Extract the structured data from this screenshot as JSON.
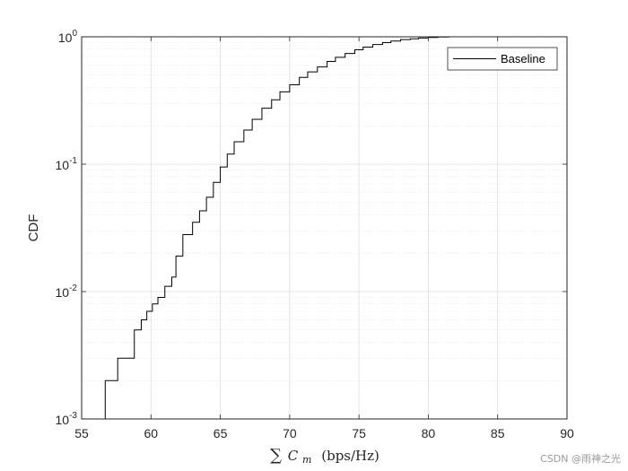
{
  "chart_data": {
    "type": "line",
    "ylabel": "CDF",
    "xlabel": {
      "sum_symbol": "∑",
      "var": "C",
      "subscript": "m",
      "unit": "(bps/Hz)"
    },
    "xlim": [
      55,
      90
    ],
    "ylim": [
      0.001,
      1
    ],
    "yscale": "log",
    "x_ticks": [
      "55",
      "60",
      "65",
      "70",
      "75",
      "80",
      "85",
      "90"
    ],
    "y_ticks": [
      {
        "base": "10",
        "exp": "-3"
      },
      {
        "base": "10",
        "exp": "-2"
      },
      {
        "base": "10",
        "exp": "-1"
      },
      {
        "base": "10",
        "exp": "0"
      }
    ],
    "grid": true,
    "minor_grid": true,
    "legend_position": "top-right",
    "series": [
      {
        "name": "Baseline",
        "color": "#000000",
        "step": true,
        "x": [
          56.7,
          57.6,
          58.8,
          59.3,
          59.7,
          60.1,
          60.5,
          61.0,
          61.5,
          61.8,
          62.3,
          63.0,
          63.5,
          64.0,
          64.5,
          65.0,
          65.5,
          66.0,
          66.7,
          67.3,
          68.0,
          68.7,
          69.3,
          70.0,
          70.7,
          71.3,
          72.0,
          72.7,
          73.3,
          74.0,
          74.7,
          75.3,
          76.0,
          76.7,
          77.3,
          78.0,
          78.7,
          79.3,
          80.0,
          80.7,
          81.5,
          82.0
        ],
        "y": [
          0.002,
          0.003,
          0.005,
          0.006,
          0.007,
          0.008,
          0.009,
          0.011,
          0.013,
          0.019,
          0.028,
          0.035,
          0.043,
          0.055,
          0.072,
          0.095,
          0.12,
          0.15,
          0.185,
          0.225,
          0.275,
          0.32,
          0.37,
          0.42,
          0.48,
          0.53,
          0.58,
          0.64,
          0.69,
          0.74,
          0.79,
          0.83,
          0.87,
          0.9,
          0.925,
          0.95,
          0.965,
          0.978,
          0.988,
          0.995,
          0.999,
          1.0
        ]
      }
    ]
  },
  "watermark": "CSDN @雨神之光"
}
